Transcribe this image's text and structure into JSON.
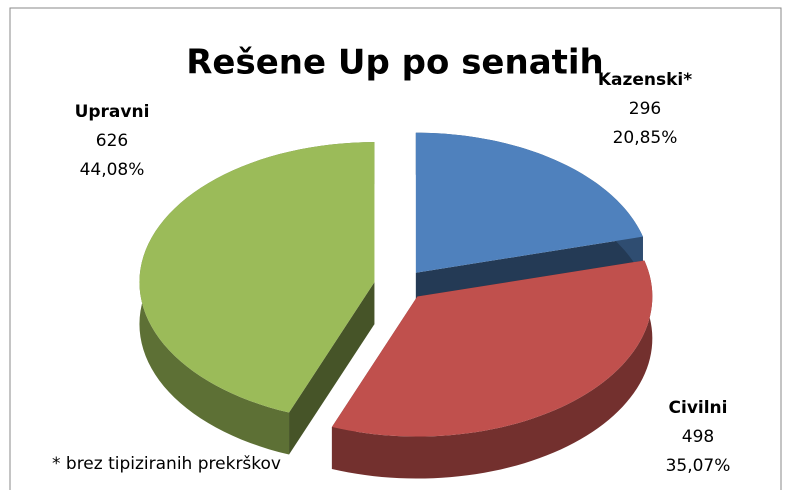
{
  "chart_data": {
    "type": "pie",
    "title": "Rešene Up po senatih",
    "categories": [
      "Kazenski*",
      "Civilni",
      "Upravni"
    ],
    "values": [
      296,
      498,
      626
    ],
    "percentages": [
      20.85,
      35.07,
      44.08
    ],
    "percentage_labels": [
      "20,85%",
      "35,07%",
      "44,08%"
    ],
    "colors": [
      "#4f81bd",
      "#c0504d",
      "#9bbb59"
    ],
    "annotation": "* brez tipiziranih prekrškov"
  }
}
